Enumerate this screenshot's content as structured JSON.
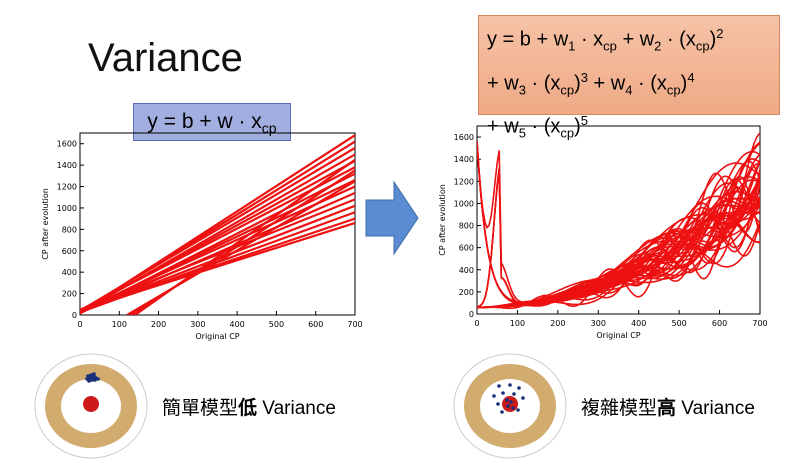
{
  "title": "Variance",
  "simple_model": {
    "equation_parts": [
      "y = b + w · x",
      "cp"
    ],
    "caption_prefix": "簡單模型",
    "caption_bold": "低",
    "caption_suffix": " Variance"
  },
  "complex_model": {
    "line1": [
      "y = b + w",
      "1",
      " · x",
      "cp",
      " + w",
      "2",
      " · (x",
      "cp",
      ")",
      "2"
    ],
    "line2": [
      "+ w",
      "3",
      " · (x",
      "cp",
      ")",
      "3",
      " + w",
      "4",
      " · (x",
      "cp",
      ")",
      "4"
    ],
    "line3": [
      "+ w",
      "5",
      " · (x",
      "cp",
      ")",
      "5"
    ],
    "caption_prefix": "複雜模型",
    "caption_bold": "高",
    "caption_suffix": " Variance"
  },
  "chart_data": [
    {
      "type": "line",
      "xlabel": "Original CP",
      "ylabel": "CP after evolution",
      "xlim": [
        0,
        700
      ],
      "ylim": [
        0,
        1700
      ],
      "xticks": [
        0,
        100,
        200,
        300,
        400,
        500,
        600,
        700
      ],
      "yticks": [
        0,
        200,
        400,
        600,
        800,
        1000,
        1200,
        1400,
        1600
      ],
      "series_color": "#ee1111",
      "endpoints_at_x700": [
        1680,
        1620,
        1560,
        1500,
        1440,
        1380,
        1320,
        1260,
        1200,
        1140,
        1080,
        1020,
        960,
        900,
        860
      ],
      "start_y_at_x0": [
        20,
        30,
        40,
        25,
        35,
        45,
        15,
        30,
        40,
        20,
        50,
        30,
        25,
        35,
        45
      ]
    },
    {
      "type": "line",
      "xlabel": "Original CP",
      "ylabel": "CP after evolution",
      "xlim": [
        0,
        700
      ],
      "ylim": [
        0,
        1700
      ],
      "xticks": [
        0,
        100,
        200,
        300,
        400,
        500,
        600,
        700
      ],
      "yticks": [
        0,
        200,
        400,
        600,
        800,
        1000,
        1200,
        1400,
        1600
      ],
      "series_color": "#ee1111"
    }
  ],
  "colors": {
    "ring": "#d2ab6e",
    "bullseye": "#cc1a1a",
    "dots": "#1a2f7a",
    "arrow": "#5b8bd0"
  }
}
